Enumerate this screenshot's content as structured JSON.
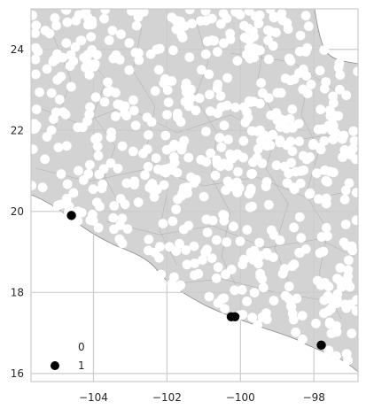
{
  "chart_data": {
    "type": "scatter",
    "title": "",
    "xlabel": "",
    "ylabel": "",
    "xlim": [
      -105.7,
      -96.8
    ],
    "ylim": [
      15.8,
      25.0
    ],
    "x_ticks": [
      -104,
      -102,
      -100,
      -98
    ],
    "y_ticks": [
      16,
      18,
      20,
      22,
      24
    ],
    "x_tick_labels": [
      "−104",
      "−102",
      "−100",
      "−98"
    ],
    "y_tick_labels": [
      "16",
      "18",
      "20",
      "22",
      "24"
    ],
    "grid": true,
    "legend_position": "bottom-left",
    "background": "land map of western/central Mexico in light gray with gray municipal boundaries; white background is ocean",
    "legend": [
      {
        "label": "0",
        "color": "#ffffff"
      },
      {
        "label": "1",
        "color": "#000000"
      }
    ],
    "series": [
      {
        "name": "1",
        "color": "#000000",
        "points": [
          {
            "x": -104.6,
            "y": 19.9
          },
          {
            "x": -100.25,
            "y": 17.4
          },
          {
            "x": -100.15,
            "y": 17.4
          },
          {
            "x": -97.8,
            "y": 16.7
          }
        ]
      },
      {
        "name": "0",
        "color": "#ffffff",
        "description": "very dense cloud of several hundred white points covering the land area",
        "points": []
      }
    ]
  },
  "colors": {
    "land": "#d3d3d3",
    "ocean": "#ffffff",
    "boundary": "#9a9a9a",
    "grid": "#cccccc",
    "axes": "#cccccc"
  }
}
